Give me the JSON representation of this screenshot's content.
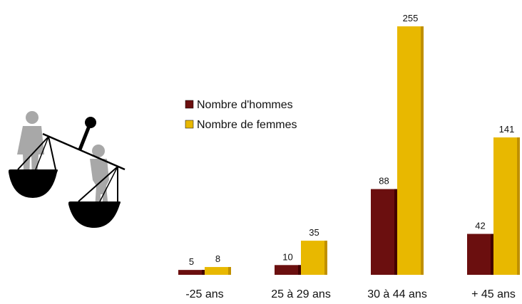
{
  "chart_data": {
    "type": "bar",
    "categories": [
      "-25 ans",
      "25 à 29 ans",
      "30 à 44 ans",
      "+ 45 ans"
    ],
    "series": [
      {
        "name": "Nombre d'hommes",
        "values": [
          5,
          10,
          88,
          42
        ],
        "color": "#6b0f0f"
      },
      {
        "name": "Nombre de femmes",
        "values": [
          8,
          35,
          255,
          141
        ],
        "color": "#e8b800"
      }
    ],
    "ylim": [
      0,
      255
    ],
    "grid": false,
    "legend_position": "center-left",
    "title": "",
    "xlabel": "",
    "ylabel": ""
  },
  "illustration": {
    "icon": "scale-of-justice-with-man-and-woman-icon"
  }
}
